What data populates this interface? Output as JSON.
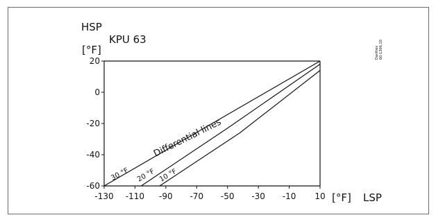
{
  "chart_data": {
    "type": "line",
    "title": "KPU 63",
    "ylabel": "HSP",
    "y_unit": "[°F]",
    "xlabel": "LSP",
    "x_unit": "[°F]",
    "xlim": [
      -130,
      10
    ],
    "ylim": [
      -60,
      20
    ],
    "x_ticks": [
      "-130",
      "-110",
      "-90",
      "-70",
      "-50",
      "-30",
      "-10",
      "10"
    ],
    "y_ticks": [
      "20",
      "0",
      "-20",
      "-40",
      "-60"
    ],
    "x_tick_values": [
      -130,
      -110,
      -90,
      -70,
      -50,
      -30,
      -10,
      10
    ],
    "y_tick_values": [
      20,
      0,
      -20,
      -40,
      -60
    ],
    "grid": false,
    "annotation": "Differential lines",
    "series": [
      {
        "name": "30 °F",
        "points": [
          [
            -130,
            -60
          ],
          [
            10,
            20
          ]
        ]
      },
      {
        "name": "20 °F",
        "points": [
          [
            -106,
            -60
          ],
          [
            -50,
            -23
          ],
          [
            10,
            18
          ]
        ]
      },
      {
        "name": "10 °F",
        "points": [
          [
            -94,
            -60
          ],
          [
            -42,
            -26
          ],
          [
            10,
            14
          ]
        ]
      }
    ]
  },
  "watermark": {
    "brand": "Danfoss",
    "code": "60-1306.10"
  }
}
